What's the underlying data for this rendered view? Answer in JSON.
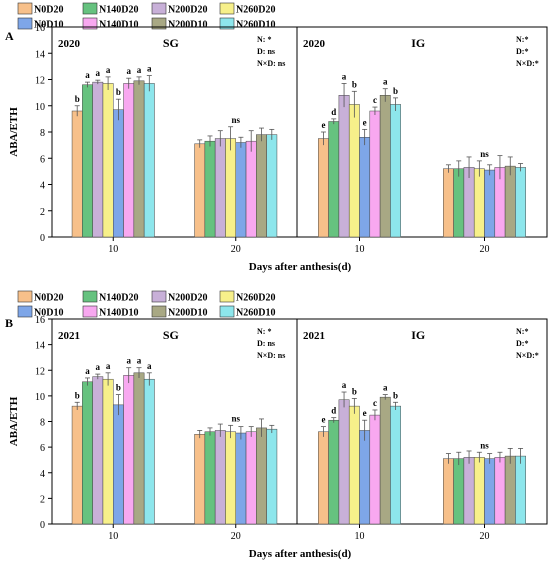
{
  "legend": {
    "items": [
      {
        "label": "N0D20",
        "color": "#f7c08a"
      },
      {
        "label": "N140D20",
        "color": "#66c27f"
      },
      {
        "label": "N200D20",
        "color": "#c8b0d8"
      },
      {
        "label": "N260D20",
        "color": "#f7f08a"
      },
      {
        "label": "N0D10",
        "color": "#7ea6e8"
      },
      {
        "label": "N140D10",
        "color": "#f8a8f0"
      },
      {
        "label": "N200D10",
        "color": "#a8a884"
      },
      {
        "label": "N260D10",
        "color": "#8de6ec"
      }
    ]
  },
  "chart_data": [
    {
      "type": "bar",
      "panel_label": "A",
      "ylabel": "ABA/ETH",
      "xlabel": "Days after anthesis(d)",
      "ylim": [
        0,
        16
      ],
      "yticks": [
        0,
        2,
        4,
        6,
        8,
        10,
        12,
        14,
        16
      ],
      "year_label": "2020",
      "subplots": [
        {
          "label": "SG",
          "stats": [
            "N: *",
            "D: ns",
            "N×D: ns"
          ],
          "categories": [
            "10",
            "20"
          ],
          "series": [
            {
              "name": "N0D20",
              "values": [
                9.6,
                7.1
              ],
              "errors": [
                0.4,
                0.3
              ]
            },
            {
              "name": "N140D20",
              "values": [
                11.6,
                7.3
              ],
              "errors": [
                0.2,
                0.4
              ]
            },
            {
              "name": "N200D20",
              "values": [
                11.8,
                7.5
              ],
              "errors": [
                0.15,
                0.6
              ]
            },
            {
              "name": "N260D20",
              "values": [
                11.7,
                7.5
              ],
              "errors": [
                0.5,
                0.9
              ]
            },
            {
              "name": "N0D10",
              "values": [
                9.7,
                7.2
              ],
              "errors": [
                0.8,
                0.4
              ]
            },
            {
              "name": "N140D10",
              "values": [
                11.7,
                7.3
              ],
              "errors": [
                0.4,
                0.8
              ]
            },
            {
              "name": "N200D10",
              "values": [
                11.9,
                7.8
              ],
              "errors": [
                0.3,
                0.5
              ]
            },
            {
              "name": "N260D10",
              "values": [
                11.7,
                7.8
              ],
              "errors": [
                0.6,
                0.4
              ]
            }
          ],
          "annotations": [
            [
              "b",
              "a",
              "a",
              "a",
              "b",
              "a",
              "a",
              "a"
            ],
            [
              "",
              "",
              "",
              "ns",
              "",
              "",
              "",
              ""
            ]
          ]
        },
        {
          "label": "IG",
          "stats": [
            "N:*",
            "D:*",
            "N×D:*"
          ],
          "categories": [
            "10",
            "20"
          ],
          "series": [
            {
              "name": "N0D20",
              "values": [
                7.5,
                5.2
              ],
              "errors": [
                0.5,
                0.3
              ]
            },
            {
              "name": "N140D20",
              "values": [
                8.8,
                5.2
              ],
              "errors": [
                0.2,
                0.6
              ]
            },
            {
              "name": "N200D20",
              "values": [
                10.8,
                5.3
              ],
              "errors": [
                0.9,
                0.8
              ]
            },
            {
              "name": "N260D20",
              "values": [
                10.1,
                5.2
              ],
              "errors": [
                1.0,
                0.6
              ]
            },
            {
              "name": "N0D10",
              "values": [
                7.6,
                5.1
              ],
              "errors": [
                0.6,
                0.4
              ]
            },
            {
              "name": "N140D10",
              "values": [
                9.6,
                5.3
              ],
              "errors": [
                0.3,
                0.9
              ]
            },
            {
              "name": "N200D10",
              "values": [
                10.8,
                5.4
              ],
              "errors": [
                0.5,
                0.7
              ]
            },
            {
              "name": "N260D10",
              "values": [
                10.1,
                5.3
              ],
              "errors": [
                0.5,
                0.3
              ]
            }
          ],
          "annotations": [
            [
              "e",
              "d",
              "a",
              "b",
              "e",
              "c",
              "a",
              "b"
            ],
            [
              "",
              "",
              "",
              "ns",
              "",
              "",
              "",
              ""
            ]
          ]
        }
      ]
    },
    {
      "type": "bar",
      "panel_label": "B",
      "ylabel": "ABA/ETH",
      "xlabel": "Days after anthesis(d)",
      "ylim": [
        0,
        16
      ],
      "yticks": [
        0,
        2,
        4,
        6,
        8,
        10,
        12,
        14,
        16
      ],
      "year_label": "2021",
      "subplots": [
        {
          "label": "SG",
          "stats": [
            "N: *",
            "D: ns",
            "N×D: ns"
          ],
          "categories": [
            "10",
            "20"
          ],
          "series": [
            {
              "name": "N0D20",
              "values": [
                9.2,
                7.0
              ],
              "errors": [
                0.3,
                0.3
              ]
            },
            {
              "name": "N140D20",
              "values": [
                11.1,
                7.2
              ],
              "errors": [
                0.3,
                0.3
              ]
            },
            {
              "name": "N200D20",
              "values": [
                11.5,
                7.3
              ],
              "errors": [
                0.2,
                0.5
              ]
            },
            {
              "name": "N260D20",
              "values": [
                11.3,
                7.2
              ],
              "errors": [
                0.5,
                0.5
              ]
            },
            {
              "name": "N0D10",
              "values": [
                9.3,
                7.1
              ],
              "errors": [
                0.8,
                0.5
              ]
            },
            {
              "name": "N140D10",
              "values": [
                11.6,
                7.2
              ],
              "errors": [
                0.6,
                0.4
              ]
            },
            {
              "name": "N200D10",
              "values": [
                11.8,
                7.5
              ],
              "errors": [
                0.4,
                0.7
              ]
            },
            {
              "name": "N260D10",
              "values": [
                11.3,
                7.4
              ],
              "errors": [
                0.5,
                0.3
              ]
            }
          ],
          "annotations": [
            [
              "b",
              "a",
              "a",
              "a",
              "b",
              "a",
              "a",
              "a"
            ],
            [
              "",
              "",
              "",
              "ns",
              "",
              "",
              "",
              ""
            ]
          ]
        },
        {
          "label": "IG",
          "stats": [
            "N:*",
            "D:*",
            "N×D:*"
          ],
          "categories": [
            "10",
            "20"
          ],
          "series": [
            {
              "name": "N0D20",
              "values": [
                7.2,
                5.1
              ],
              "errors": [
                0.4,
                0.4
              ]
            },
            {
              "name": "N140D20",
              "values": [
                8.1,
                5.1
              ],
              "errors": [
                0.2,
                0.5
              ]
            },
            {
              "name": "N200D20",
              "values": [
                9.7,
                5.2
              ],
              "errors": [
                0.6,
                0.5
              ]
            },
            {
              "name": "N260D20",
              "values": [
                9.2,
                5.2
              ],
              "errors": [
                0.6,
                0.4
              ]
            },
            {
              "name": "N0D10",
              "values": [
                7.3,
                5.1
              ],
              "errors": [
                0.8,
                0.4
              ]
            },
            {
              "name": "N140D10",
              "values": [
                8.5,
                5.2
              ],
              "errors": [
                0.4,
                0.4
              ]
            },
            {
              "name": "N200D10",
              "values": [
                9.9,
                5.3
              ],
              "errors": [
                0.2,
                0.6
              ]
            },
            {
              "name": "N260D10",
              "values": [
                9.2,
                5.3
              ],
              "errors": [
                0.3,
                0.6
              ]
            }
          ],
          "annotations": [
            [
              "e",
              "d",
              "a",
              "b",
              "e",
              "c",
              "a",
              "b"
            ],
            [
              "",
              "",
              "",
              "ns",
              "",
              "",
              "",
              ""
            ]
          ]
        }
      ]
    }
  ]
}
